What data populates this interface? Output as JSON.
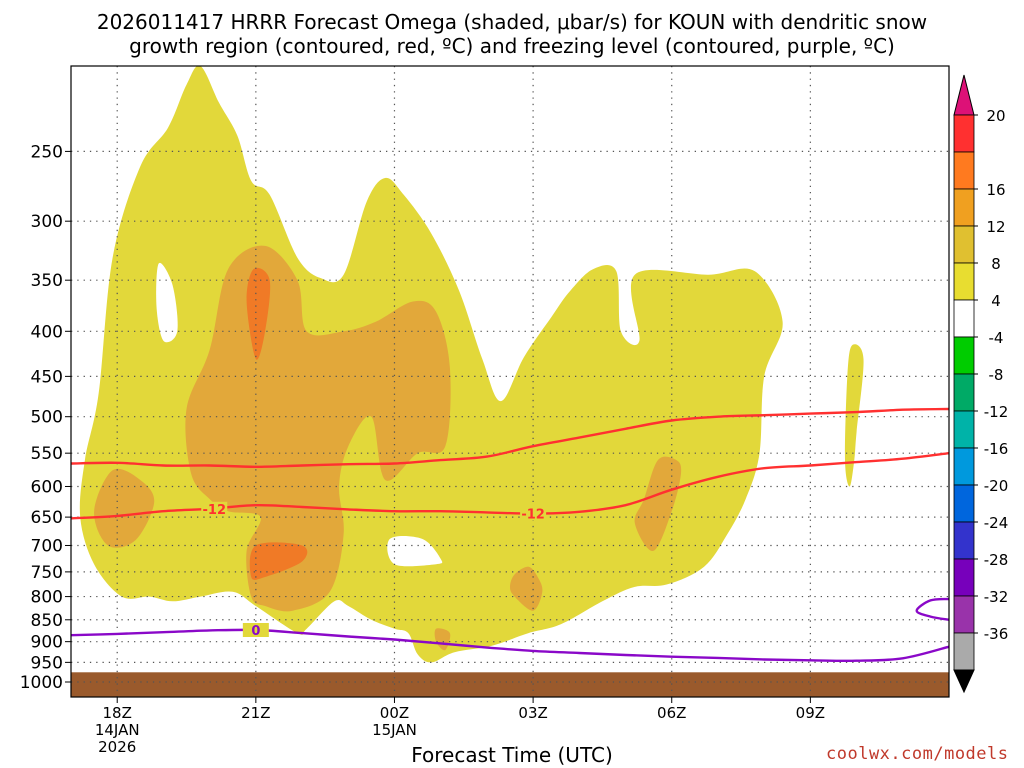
{
  "header": {
    "title_line1": "2026011417 HRRR Forecast Omega (shaded, μbar/s) for KOUN with dendritic snow",
    "title_line2": "growth region (contoured, red, ºC) and freezing level (contoured, purple, ºC)"
  },
  "footer": {
    "watermark": "coolwx.com/models"
  },
  "chart_data": {
    "type": "time-height cross section",
    "xlabel": "Forecast Time (UTC)",
    "x_hours_start": -1.0,
    "x_hours_end": 18.0,
    "x_ticks": [
      {
        "hour": 0,
        "labels": [
          "18Z",
          "14JAN",
          "2026"
        ]
      },
      {
        "hour": 3,
        "labels": [
          "21Z"
        ]
      },
      {
        "hour": 6,
        "labels": [
          "00Z",
          "15JAN"
        ]
      },
      {
        "hour": 9,
        "labels": [
          "03Z"
        ]
      },
      {
        "hour": 12,
        "labels": [
          "06Z"
        ]
      },
      {
        "hour": 15,
        "labels": [
          "09Z"
        ]
      }
    ],
    "y_scale": "log-pressure (hPa, inverted)",
    "ylim_hpa": [
      1040,
      200
    ],
    "y_ticks": [
      250,
      300,
      350,
      400,
      450,
      500,
      550,
      600,
      650,
      700,
      750,
      800,
      850,
      900,
      950,
      1000
    ],
    "ground_hpa": 975,
    "ground_color": "#9a5a2c",
    "colorbar": {
      "labels": [
        "20",
        "16",
        "12",
        "8",
        "4",
        "-4",
        "-8",
        "-12",
        "-16",
        "-20",
        "-24",
        "-28",
        "-32",
        "-36"
      ],
      "colors": [
        "#ff3030",
        "#ff7a1f",
        "#f0a020",
        "#e0c030",
        "#e8dd30",
        "#ffffff",
        "#00cc00",
        "#00aa66",
        "#00b3a8",
        "#0099dd",
        "#0066dd",
        "#3333cc",
        "#7700bb",
        "#9933aa",
        "#aaaaaa"
      ],
      "top_arrow_color": "#dd1177",
      "bottom_arrow_color": "#000000"
    },
    "omega_shading": {
      "levels_ubar_s": [
        4,
        8,
        12
      ],
      "colors": [
        "#e2d83a",
        "#e2a83a",
        "#f07a26"
      ],
      "regions": [
        {
          "level": 4,
          "points": [
            [
              -0.7,
              560
            ],
            [
              -0.4,
              470
            ],
            [
              -0.1,
              330
            ],
            [
              0.5,
              260
            ],
            [
              1.1,
              235
            ],
            [
              1.5,
              210
            ],
            [
              1.8,
              200
            ],
            [
              2.2,
              220
            ],
            [
              2.6,
              240
            ],
            [
              2.9,
              270
            ],
            [
              3.3,
              280
            ],
            [
              3.9,
              330
            ],
            [
              4.4,
              348
            ],
            [
              4.9,
              345
            ],
            [
              5.4,
              285
            ],
            [
              5.8,
              268
            ],
            [
              6.2,
              280
            ],
            [
              6.8,
              310
            ],
            [
              7.4,
              360
            ],
            [
              7.9,
              430
            ],
            [
              8.3,
              480
            ],
            [
              8.8,
              428
            ],
            [
              9.4,
              385
            ],
            [
              9.8,
              360
            ],
            [
              10.3,
              340
            ],
            [
              10.8,
              342
            ],
            [
              10.9,
              400
            ],
            [
              11.3,
              410
            ],
            [
              11.2,
              345
            ],
            [
              12.8,
              345
            ],
            [
              13.8,
              342
            ],
            [
              14.4,
              390
            ],
            [
              14.0,
              450
            ],
            [
              13.9,
              550
            ],
            [
              13.6,
              620
            ],
            [
              13.2,
              680
            ],
            [
              12.7,
              740
            ],
            [
              11.9,
              775
            ],
            [
              11.2,
              780
            ],
            [
              10.5,
              810
            ],
            [
              9.6,
              860
            ],
            [
              8.9,
              880
            ],
            [
              8.1,
              910
            ],
            [
              7.3,
              925
            ],
            [
              6.8,
              950
            ],
            [
              6.5,
              930
            ],
            [
              6.3,
              880
            ],
            [
              6.0,
              870
            ],
            [
              5.5,
              850
            ],
            [
              5.0,
              820
            ],
            [
              4.7,
              810
            ],
            [
              4.1,
              870
            ],
            [
              3.9,
              880
            ],
            [
              3.0,
              820
            ],
            [
              2.5,
              790
            ],
            [
              1.8,
              800
            ],
            [
              1.2,
              810
            ],
            [
              0.7,
              800
            ],
            [
              0.1,
              800
            ],
            [
              -0.5,
              735
            ],
            [
              -0.8,
              650
            ]
          ]
        },
        {
          "level": 4,
          "points": [
            [
              15.9,
              415
            ],
            [
              16.15,
              430
            ],
            [
              16.0,
              520
            ],
            [
              15.95,
              560
            ],
            [
              15.85,
              600
            ],
            [
              15.75,
              560
            ],
            [
              15.8,
              450
            ]
          ]
        },
        {
          "level": 4,
          "hole": true,
          "points": [
            [
              0.9,
              335
            ],
            [
              1.2,
              355
            ],
            [
              1.3,
              400
            ],
            [
              1.0,
              410
            ],
            [
              0.85,
              375
            ]
          ]
        },
        {
          "level": 4,
          "hole": true,
          "points": [
            [
              5.9,
              688
            ],
            [
              6.6,
              688
            ],
            [
              7.0,
              725
            ],
            [
              6.9,
              735
            ],
            [
              6.0,
              735
            ]
          ]
        },
        {
          "level": 8,
          "points": [
            [
              -0.5,
              640
            ],
            [
              -0.1,
              575
            ],
            [
              0.5,
              590
            ],
            [
              0.8,
              625
            ],
            [
              0.4,
              690
            ],
            [
              -0.2,
              700
            ]
          ]
        },
        {
          "level": 8,
          "points": [
            [
              1.5,
              490
            ],
            [
              2.0,
              420
            ],
            [
              2.4,
              340
            ],
            [
              3.2,
              320
            ],
            [
              3.9,
              350
            ],
            [
              4.1,
              400
            ],
            [
              4.9,
              400
            ],
            [
              5.6,
              390
            ],
            [
              6.4,
              370
            ],
            [
              6.9,
              380
            ],
            [
              7.2,
              440
            ],
            [
              7.1,
              540
            ],
            [
              6.5,
              550
            ],
            [
              5.8,
              590
            ],
            [
              5.5,
              500
            ],
            [
              5.0,
              540
            ],
            [
              4.8,
              600
            ],
            [
              4.9,
              680
            ],
            [
              4.6,
              790
            ],
            [
              3.8,
              830
            ],
            [
              3.2,
              820
            ],
            [
              2.9,
              800
            ],
            [
              2.8,
              710
            ],
            [
              3.1,
              650
            ],
            [
              2.4,
              640
            ],
            [
              2.0,
              620
            ],
            [
              1.6,
              580
            ]
          ]
        },
        {
          "level": 8,
          "points": [
            [
              8.6,
              755
            ],
            [
              8.9,
              740
            ],
            [
              9.1,
              760
            ],
            [
              9.2,
              790
            ],
            [
              9.0,
              830
            ],
            [
              8.6,
              800
            ],
            [
              8.5,
              780
            ]
          ]
        },
        {
          "level": 8,
          "points": [
            [
              11.7,
              560
            ],
            [
              12.1,
              560
            ],
            [
              12.2,
              580
            ],
            [
              12.0,
              640
            ],
            [
              11.6,
              710
            ],
            [
              11.2,
              660
            ],
            [
              11.4,
              620
            ]
          ]
        },
        {
          "level": 8,
          "points": [
            [
              6.9,
              870
            ],
            [
              7.2,
              880
            ],
            [
              7.1,
              920
            ],
            [
              6.9,
              900
            ]
          ]
        },
        {
          "level": 12,
          "points": [
            [
              2.95,
              340
            ],
            [
              3.3,
              350
            ],
            [
              3.2,
              400
            ],
            [
              3.0,
              430
            ],
            [
              2.8,
              370
            ]
          ]
        },
        {
          "level": 12,
          "points": [
            [
              3.0,
              700
            ],
            [
              4.0,
              700
            ],
            [
              4.0,
              730
            ],
            [
              3.2,
              760
            ],
            [
              2.9,
              760
            ]
          ]
        }
      ]
    },
    "contours": [
      {
        "name": "-12",
        "color": "#ff3030",
        "label_at_hours": [
          2.1,
          9.0
        ],
        "points": [
          [
            -1,
            652
          ],
          [
            0,
            648
          ],
          [
            1,
            640
          ],
          [
            2,
            636
          ],
          [
            3,
            630
          ],
          [
            4,
            633
          ],
          [
            5,
            637
          ],
          [
            6,
            640
          ],
          [
            7,
            640
          ],
          [
            8,
            642
          ],
          [
            9,
            644
          ],
          [
            10,
            641
          ],
          [
            11,
            630
          ],
          [
            12,
            605
          ],
          [
            13,
            585
          ],
          [
            14,
            572
          ],
          [
            15,
            568
          ],
          [
            16,
            563
          ],
          [
            17,
            558
          ],
          [
            18,
            550
          ]
        ]
      },
      {
        "name": "-16",
        "color": "#ff3030",
        "label_at_hours": [],
        "points": [
          [
            -1,
            565
          ],
          [
            0,
            564
          ],
          [
            1,
            568
          ],
          [
            2,
            568
          ],
          [
            3,
            570
          ],
          [
            4,
            568
          ],
          [
            5,
            566
          ],
          [
            6,
            565
          ],
          [
            7,
            560
          ],
          [
            8,
            555
          ],
          [
            9,
            540
          ],
          [
            10,
            528
          ],
          [
            11,
            516
          ],
          [
            12,
            505
          ],
          [
            13,
            500
          ],
          [
            14,
            498
          ],
          [
            15,
            496
          ],
          [
            16,
            494
          ],
          [
            17,
            491
          ],
          [
            18,
            490
          ]
        ]
      },
      {
        "name": "0",
        "color": "#8a08c8",
        "label_at_hours": [
          3.0
        ],
        "points": [
          [
            -1,
            885
          ],
          [
            0,
            882
          ],
          [
            1,
            878
          ],
          [
            2,
            874
          ],
          [
            3,
            873
          ],
          [
            4,
            880
          ],
          [
            5,
            888
          ],
          [
            6,
            895
          ],
          [
            7,
            904
          ],
          [
            8,
            914
          ],
          [
            9,
            922
          ],
          [
            10,
            927
          ],
          [
            11,
            932
          ],
          [
            12,
            936
          ],
          [
            13,
            939
          ],
          [
            14,
            943
          ],
          [
            15,
            945
          ],
          [
            16,
            946
          ],
          [
            17,
            940
          ],
          [
            18,
            912
          ]
        ]
      },
      {
        "name": "0b",
        "color": "#8a08c8",
        "label_at_hours": [],
        "points": [
          [
            18,
            805
          ],
          [
            17.6,
            808
          ],
          [
            17.3,
            830
          ],
          [
            17.6,
            843
          ],
          [
            18,
            850
          ]
        ]
      }
    ]
  }
}
